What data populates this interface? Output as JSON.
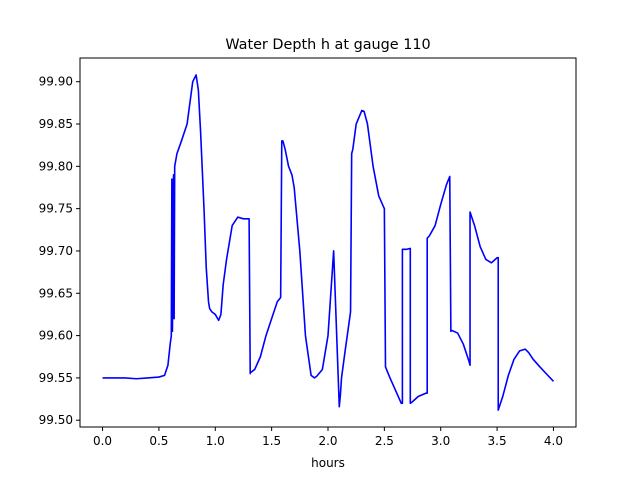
{
  "chart_data": {
    "type": "line",
    "title": "Water Depth h at gauge 110",
    "xlabel": "hours",
    "ylabel": "",
    "xlim": [
      -0.2,
      4.2
    ],
    "ylim": [
      99.492,
      99.928
    ],
    "xticks": [
      0.0,
      0.5,
      1.0,
      1.5,
      2.0,
      2.5,
      3.0,
      3.5,
      4.0
    ],
    "xtick_labels": [
      "0.0",
      "0.5",
      "1.0",
      "1.5",
      "2.0",
      "2.5",
      "3.0",
      "3.5",
      "4.0"
    ],
    "yticks": [
      99.5,
      99.55,
      99.6,
      99.65,
      99.7,
      99.75,
      99.8,
      99.85,
      99.9
    ],
    "ytick_labels": [
      "99.50",
      "99.55",
      "99.60",
      "99.65",
      "99.70",
      "99.75",
      "99.80",
      "99.85",
      "99.90"
    ],
    "grid": false,
    "color": "#0000ff",
    "series": [
      {
        "x": [
          0.0,
          0.1,
          0.2,
          0.3,
          0.4,
          0.5,
          0.55,
          0.58,
          0.6,
          0.61,
          0.615,
          0.62,
          0.63,
          0.635,
          0.64,
          0.66,
          0.7,
          0.75,
          0.77,
          0.8,
          0.83,
          0.85,
          0.87,
          0.9,
          0.92,
          0.94,
          0.95,
          0.97,
          1.0,
          1.03,
          1.05,
          1.07,
          1.1,
          1.15,
          1.2,
          1.25,
          1.3,
          1.31,
          1.31,
          1.35,
          1.4,
          1.45,
          1.5,
          1.55,
          1.58,
          1.59,
          1.6,
          1.62,
          1.65,
          1.68,
          1.7,
          1.75,
          1.8,
          1.85,
          1.88,
          1.9,
          1.95,
          2.0,
          2.05,
          2.1,
          2.11,
          2.12,
          2.15,
          2.2,
          2.21,
          2.22,
          2.25,
          2.3,
          2.32,
          2.35,
          2.4,
          2.45,
          2.5,
          2.51,
          2.51,
          2.55,
          2.6,
          2.65,
          2.66,
          2.66,
          2.7,
          2.73,
          2.73,
          2.75,
          2.8,
          2.87,
          2.88,
          2.88,
          2.9,
          2.95,
          3.0,
          3.05,
          3.08,
          3.09,
          3.1,
          3.15,
          3.2,
          3.25,
          3.26,
          3.26,
          3.3,
          3.35,
          3.4,
          3.45,
          3.5,
          3.51,
          3.51,
          3.55,
          3.6,
          3.65,
          3.7,
          3.75,
          3.78,
          3.82,
          3.88,
          3.95,
          4.0
        ],
        "y": [
          99.55,
          99.55,
          99.55,
          99.549,
          99.55,
          99.551,
          99.553,
          99.565,
          99.59,
          99.6,
          99.785,
          99.605,
          99.79,
          99.62,
          99.8,
          99.815,
          99.83,
          99.85,
          99.87,
          99.9,
          99.908,
          99.89,
          99.84,
          99.75,
          99.68,
          99.64,
          99.632,
          99.628,
          99.625,
          99.618,
          99.625,
          99.66,
          99.69,
          99.73,
          99.74,
          99.738,
          99.738,
          99.555,
          99.556,
          99.56,
          99.575,
          99.6,
          99.62,
          99.64,
          99.645,
          99.83,
          99.83,
          99.82,
          99.8,
          99.79,
          99.775,
          99.7,
          99.6,
          99.553,
          99.55,
          99.552,
          99.56,
          99.6,
          99.7,
          99.516,
          99.53,
          99.55,
          99.58,
          99.628,
          99.815,
          99.82,
          99.85,
          99.866,
          99.865,
          99.85,
          99.8,
          99.765,
          99.75,
          99.563,
          99.563,
          99.55,
          99.535,
          99.52,
          99.52,
          99.702,
          99.702,
          99.703,
          99.52,
          99.522,
          99.528,
          99.532,
          99.532,
          99.715,
          99.718,
          99.73,
          99.755,
          99.778,
          99.788,
          99.605,
          99.606,
          99.603,
          99.59,
          99.57,
          99.565,
          99.746,
          99.73,
          99.705,
          99.69,
          99.686,
          99.692,
          99.692,
          99.512,
          99.528,
          99.553,
          99.572,
          99.582,
          99.584,
          99.58,
          99.572,
          99.563,
          99.553,
          99.546
        ]
      }
    ]
  }
}
